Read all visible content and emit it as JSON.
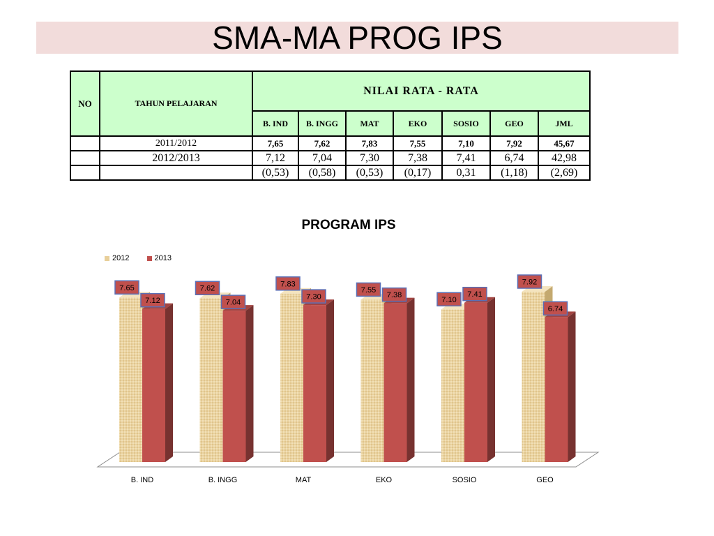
{
  "slide_title": "SMA-MA PROG IPS",
  "table": {
    "no_header": "NO",
    "year_header": "TAHUN PELAJARAN",
    "group_header": "NILAI RATA - RATA",
    "columns": [
      "B. IND",
      "B. INGG",
      "MAT",
      "EKO",
      "SOSIO",
      "GEO",
      "JML"
    ],
    "rows": [
      {
        "no": "",
        "year": "2011/2012",
        "values": [
          "7,65",
          "7,62",
          "7,83",
          "7,55",
          "7,10",
          "7,92",
          "45,67"
        ]
      },
      {
        "no": "",
        "year": "2012/2013",
        "values": [
          "7,12",
          "7,04",
          "7,30",
          "7,38",
          "7,41",
          "6,74",
          "42,98"
        ]
      },
      {
        "no": "",
        "year": "",
        "values": [
          "(0,53)",
          "(0,58)",
          "(0,53)",
          "(0,17)",
          "0,31",
          "(1,18)",
          "(2,69)"
        ]
      }
    ]
  },
  "chart_data": {
    "type": "bar",
    "title": "PROGRAM IPS",
    "categories": [
      "B. IND",
      "B. INGG",
      "MAT",
      "EKO",
      "SOSIO",
      "GEO"
    ],
    "series": [
      {
        "name": "2012",
        "values": [
          7.65,
          7.62,
          7.83,
          7.55,
          7.1,
          7.92
        ],
        "labels": [
          "7.65",
          "7.62",
          "7.83",
          "7.55",
          "7.10",
          "7.92"
        ],
        "color": "#e8cf9a"
      },
      {
        "name": "2013",
        "values": [
          7.12,
          7.04,
          7.3,
          7.38,
          7.41,
          6.74
        ],
        "labels": [
          "7.12",
          "7.04",
          "7.30",
          "7.38",
          "7.41",
          "6.74"
        ],
        "color": "#c0504d"
      }
    ],
    "legend": "top-left",
    "grid": false,
    "three_d": true
  },
  "colors": {
    "title_band": "#f2dcdb",
    "table_header": "#ccffcc",
    "label_box": "#c0504d",
    "label_border": "#5b6fb5"
  }
}
